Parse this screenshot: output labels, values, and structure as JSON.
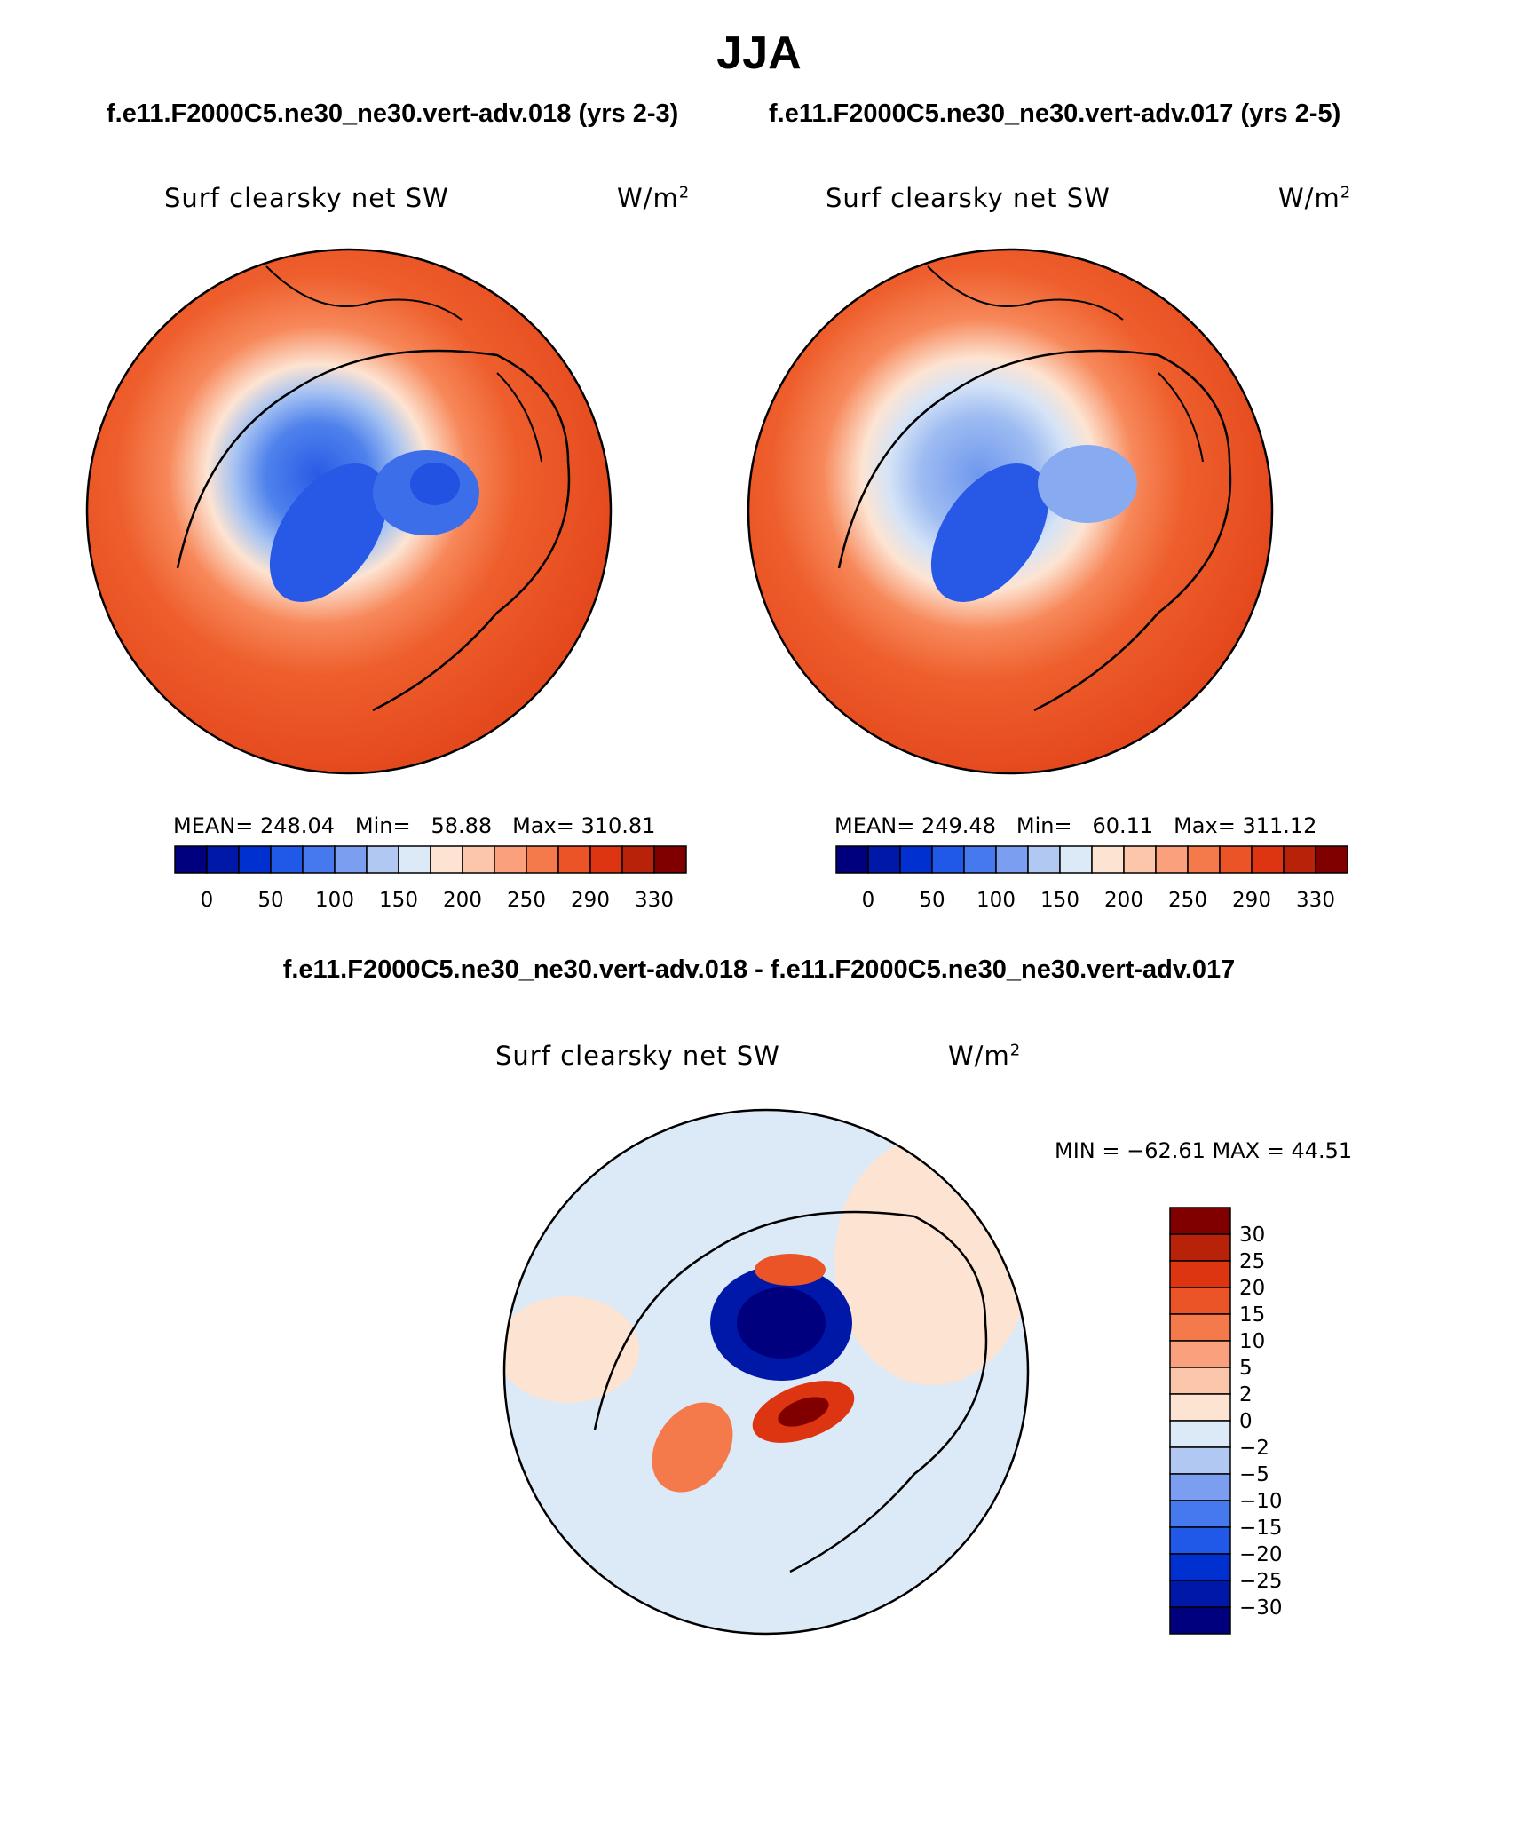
{
  "title": "JJA",
  "panels": [
    {
      "run": "f.e11.F2000C5.ne30_ne30.vert-adv.018 (yrs 2-3)",
      "variable": "Surf clearsky net SW",
      "units": "W/m",
      "units_exp": "2",
      "stats": {
        "mean_label": "MEAN=",
        "mean": "248.04",
        "min_label": "Min=",
        "min": "58.88",
        "max_label": "Max=",
        "max": "310.81"
      }
    },
    {
      "run": "f.e11.F2000C5.ne30_ne30.vert-adv.017 (yrs 2-5)",
      "variable": "Surf clearsky net SW",
      "units": "W/m",
      "units_exp": "2",
      "stats": {
        "mean_label": "MEAN=",
        "mean": "249.48",
        "min_label": "Min=",
        "min": "60.11",
        "max_label": "Max=",
        "max": "311.12"
      }
    }
  ],
  "difference": {
    "title": "f.e11.F2000C5.ne30_ne30.vert-adv.018 - f.e11.F2000C5.ne30_ne30.vert-adv.017",
    "variable": "Surf clearsky net SW",
    "units": "W/m",
    "units_exp": "2",
    "minmax": "MIN = −62.61 MAX =   44.51"
  },
  "colorbars": {
    "absolute": {
      "colors": [
        "#00007f",
        "#0018a8",
        "#0030d0",
        "#2058e8",
        "#4678ee",
        "#7c9ef0",
        "#b0c8f2",
        "#dce9f6",
        "#fde4d2",
        "#fcc6aa",
        "#faa07c",
        "#f47a4c",
        "#ea5426",
        "#dd3512",
        "#b82208",
        "#800000"
      ],
      "tick_labels": [
        "0",
        "50",
        "100",
        "150",
        "200",
        "250",
        "290",
        "330"
      ]
    },
    "difference": {
      "colors": [
        "#00007f",
        "#0018a8",
        "#0030d0",
        "#2058e8",
        "#4678ee",
        "#7c9ef0",
        "#b0c8f2",
        "#dce9f6",
        "#fde4d2",
        "#fcc6aa",
        "#faa07c",
        "#f47a4c",
        "#ea5426",
        "#dd3512",
        "#b82208",
        "#800000"
      ],
      "tick_labels": [
        "30",
        "25",
        "20",
        "15",
        "10",
        "5",
        "2",
        "0",
        "−2",
        "−5",
        "−10",
        "−15",
        "−20",
        "−25",
        "−30"
      ]
    }
  }
}
